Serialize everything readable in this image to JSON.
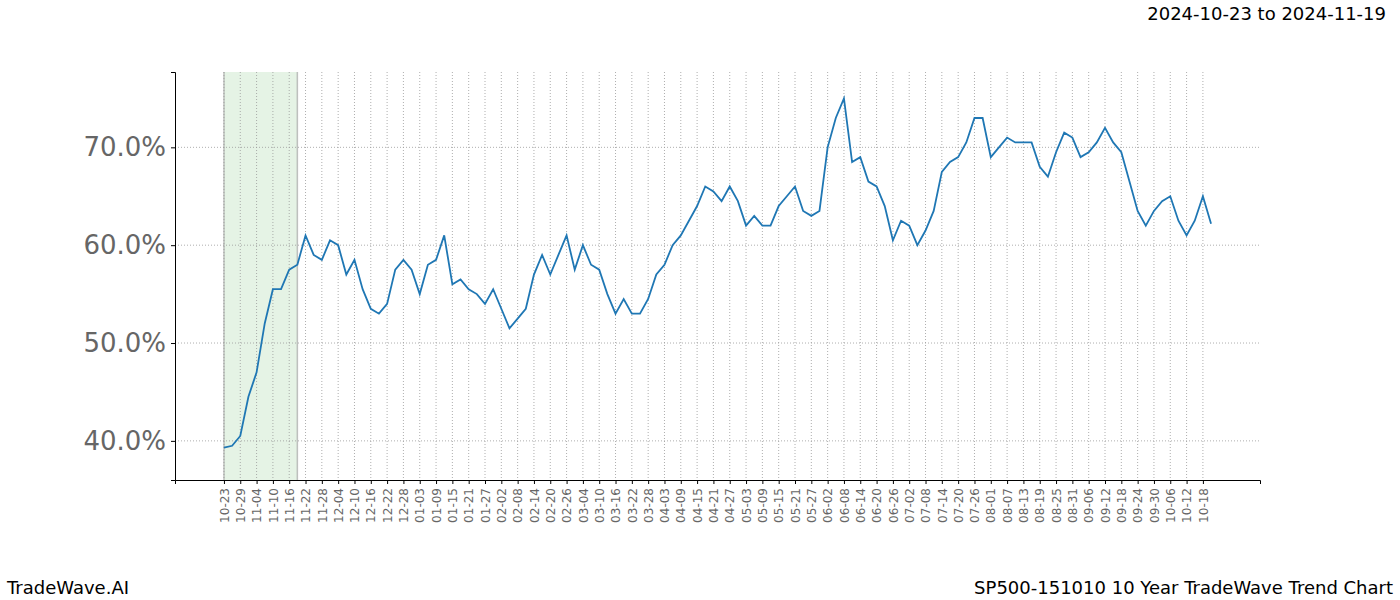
{
  "chart_data": {
    "type": "line",
    "title": "2024-10-23 to 2024-11-19",
    "annotations": [
      "TradeWave.AI",
      "SP500-151010 10 Year TradeWave Trend Chart"
    ],
    "categories": [
      "10-23",
      null,
      "10-29",
      null,
      "11-04",
      null,
      "11-10",
      null,
      "11-16",
      null,
      "11-22",
      null,
      "11-28",
      null,
      "12-04",
      null,
      "12-10",
      null,
      "12-16",
      null,
      "12-22",
      null,
      "12-28",
      null,
      "01-03",
      null,
      "01-09",
      null,
      "01-15",
      null,
      "01-21",
      null,
      "01-27",
      null,
      "02-02",
      null,
      "02-08",
      null,
      "02-14",
      null,
      "02-20",
      null,
      "02-26",
      null,
      "03-04",
      null,
      "03-10",
      null,
      "03-16",
      null,
      "03-22",
      null,
      "03-28",
      null,
      "04-03",
      null,
      "04-09",
      null,
      "04-15",
      null,
      "04-21",
      null,
      "04-27",
      null,
      "05-03",
      null,
      "05-09",
      null,
      "05-15",
      null,
      "05-21",
      null,
      "05-27",
      null,
      "06-02",
      null,
      "06-08",
      null,
      "06-14",
      null,
      "06-20",
      null,
      "06-26",
      null,
      "07-02",
      null,
      "07-08",
      null,
      "07-14",
      null,
      "07-20",
      null,
      "07-26",
      null,
      "08-01",
      null,
      "08-07",
      null,
      "08-13",
      null,
      "08-19",
      null,
      "08-25",
      null,
      "08-31",
      null,
      "09-06",
      null,
      "09-12",
      null,
      "09-18",
      null,
      "09-24",
      null,
      "09-30",
      null,
      "10-06",
      null,
      "10-12",
      null,
      "10-18",
      null
    ],
    "values": [
      39.3,
      39.5,
      40.5,
      44.5,
      47,
      52,
      55.5,
      55.5,
      57.5,
      58,
      61,
      59,
      58.5,
      60.5,
      60,
      57,
      58.5,
      55.5,
      53.5,
      53,
      54,
      57.5,
      58.5,
      57.5,
      55,
      58,
      58.5,
      61,
      56,
      56.5,
      55.5,
      55,
      54,
      55.5,
      53.5,
      51.5,
      52.5,
      53.5,
      57,
      59,
      57,
      59,
      61,
      57.5,
      60,
      58,
      57.5,
      55,
      53,
      54.5,
      53,
      53,
      54.5,
      57,
      58,
      60,
      61,
      62.5,
      64,
      66,
      65.5,
      64.5,
      66,
      64.5,
      62,
      63,
      62,
      62,
      64,
      65,
      66,
      63.5,
      63,
      63.5,
      70,
      73,
      75,
      68.5,
      69,
      66.5,
      66,
      64,
      60.5,
      62.5,
      62,
      60,
      61.5,
      63.5,
      67.5,
      68.5,
      69,
      70.5,
      73,
      73,
      69,
      70,
      71,
      70.5,
      70.5,
      70.5,
      68,
      67,
      69.5,
      71.5,
      71,
      69,
      69.5,
      70.5,
      72,
      70.5,
      69.5,
      66.5,
      63.5,
      62,
      63.5,
      64.5,
      65,
      62.5,
      61,
      62.5,
      65,
      62.2
    ],
    "color": "#1f77b4",
    "highlight": {
      "from": 0,
      "to": 9
    },
    "ylim": [
      36.0,
      77.7
    ],
    "yticks": [
      {
        "value": 40,
        "label": "40.0%"
      },
      {
        "value": 50,
        "label": "50.0%"
      },
      {
        "value": 60,
        "label": "60.0%"
      },
      {
        "value": 70,
        "label": "70.0%"
      }
    ],
    "grid": true
  }
}
